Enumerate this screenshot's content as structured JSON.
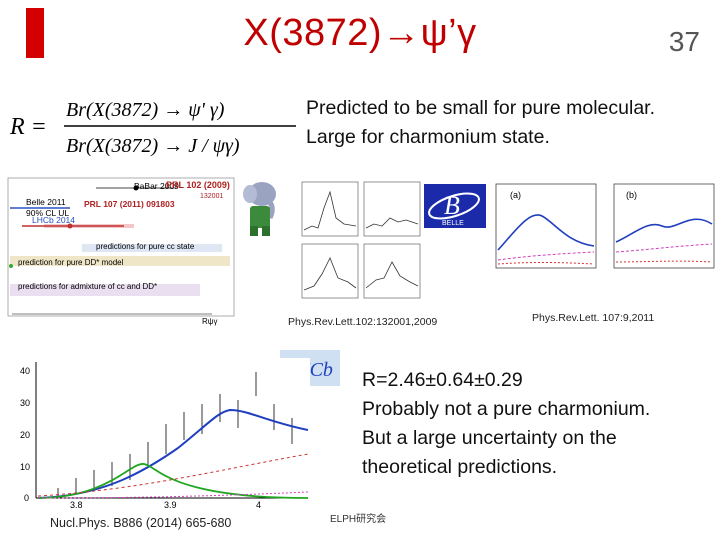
{
  "slide": {
    "title": "X(3872)→ψ’γ",
    "page_number": "37"
  },
  "formula": {
    "r": "R =",
    "numerator": "Br(X(3872) → ψ' γ)",
    "denominator": "Br(X(3872) → J / ψγ)"
  },
  "prediction_text": {
    "line1": "Predicted to be small for pure molecular.",
    "line2": "Large for charmonium state."
  },
  "theory_plot": {
    "labels": {
      "babar": "BaBar 2009",
      "prl102": "PRL 102 (2009)",
      "prl102_num": "132001",
      "belle": "Belle 2011",
      "cl": "90% CL UL",
      "prl107": "PRL 107 (2011) 091803",
      "lhcb": "LHCb 2014",
      "pred_cc": "predictions for pure cc state",
      "pred_dd": "prediction for pure DD* model",
      "pred_mix": "predictions for admixture of cc and DD*",
      "axis": "Rψγ"
    }
  },
  "babar_ref": "Phys.Rev.Lett.102:132001,2009",
  "belle_ref": "Phys.Rev.Lett. 107:9,2011",
  "belle_logo": {
    "letter": "B",
    "text": "BELLE"
  },
  "belle_panel_labels": {
    "a": "(a)",
    "b": "(b)"
  },
  "lhcb_logo": "LHCb",
  "lhcb_plot": {
    "y_ticks": [
      "40",
      "30",
      "20",
      "10",
      "0"
    ],
    "x_ticks": [
      "3.8",
      "3.9",
      "4"
    ]
  },
  "lhcb_ref": "Nucl.Phys. B886 (2014) 665-680",
  "result_text": {
    "line1": "R=2.46±0.64±0.29",
    "line2": "Probably not a pure charmonium.",
    "line3": "But a large uncertainty on the",
    "line4": "theoretical predictions."
  },
  "footer": "ELPH研究会",
  "colors": {
    "title": "#c00000",
    "accent_bar": "#d40000",
    "fit_blue": "#1f3fbf",
    "signal_green": "#1fa61f",
    "background_red": "#d03030",
    "pred_magenta": "#d040c0"
  }
}
